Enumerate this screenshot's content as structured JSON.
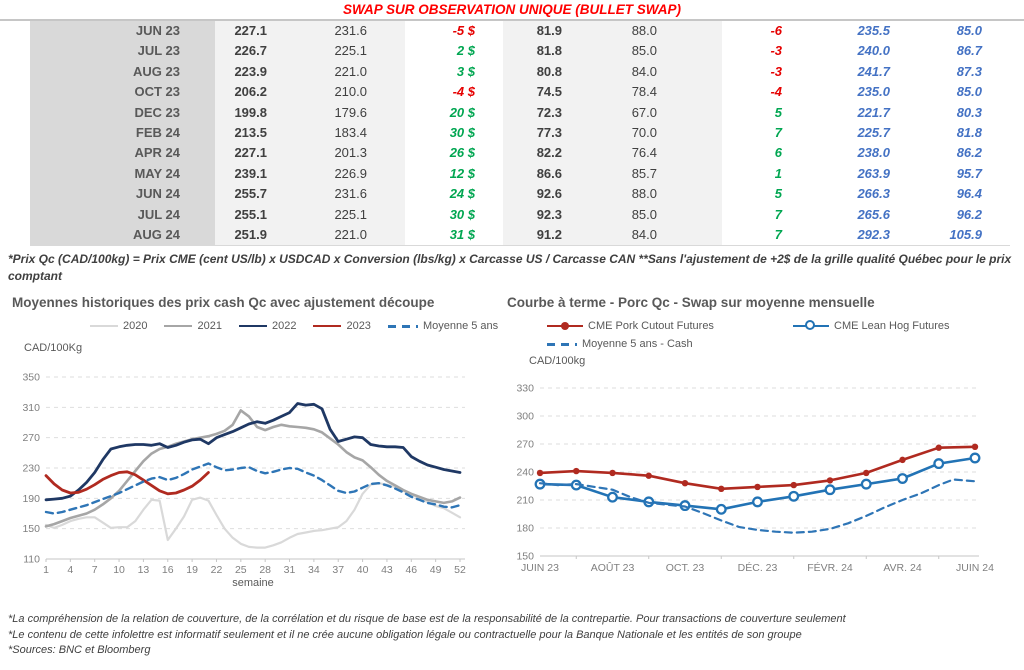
{
  "title": "SWAP SUR OBSERVATION UNIQUE (BULLET SWAP)",
  "formula_note": "*Prix Qc (CAD/100kg) = Prix CME (cent US/lb) x USDCAD x Conversion (lbs/kg) x Carcasse US / Carcasse CAN **Sans l'ajustement de +2$ de la grille qualité Québec pour le prix comptant",
  "footer_notes": [
    "*La compréhension de la relation de couverture, de la corrélation et du risque de base est de la responsabilité de la contrepartie. Pour transactions de couverture seulement",
    "*Le contenu de cette infolettre est informatif seulement et il ne crée aucune obligation légale ou contractuelle pour la Banque Nationale et les entités de son groupe",
    "*Sources: BNC et Bloomberg"
  ],
  "colors": {
    "title_red": "#ff0000",
    "negative": "#e60000",
    "positive": "#00a651",
    "futures_blue": "#4472c4",
    "navy_2022": "#1f3864",
    "red_series": "#b02a20",
    "steel_blue": "#2273b5",
    "dashed_blue": "#2e75b6",
    "gray_2021": "#a6a6a6",
    "light_gray_2020": "#d9d9d9"
  },
  "table": {
    "rows": [
      {
        "month": "JUN 23",
        "qc_swap": "227.1",
        "qc_cash": "231.6",
        "qc_diff": "-5 $",
        "us_swap": "81.9",
        "us_cash": "88.0",
        "us_diff": "-6",
        "curve_cad": "235.5",
        "curve_us": "85.0"
      },
      {
        "month": "JUL 23",
        "qc_swap": "226.7",
        "qc_cash": "225.1",
        "qc_diff": "2 $",
        "us_swap": "81.8",
        "us_cash": "85.0",
        "us_diff": "-3",
        "curve_cad": "240.0",
        "curve_us": "86.7"
      },
      {
        "month": "AUG 23",
        "qc_swap": "223.9",
        "qc_cash": "221.0",
        "qc_diff": "3 $",
        "us_swap": "80.8",
        "us_cash": "84.0",
        "us_diff": "-3",
        "curve_cad": "241.7",
        "curve_us": "87.3"
      },
      {
        "month": "OCT 23",
        "qc_swap": "206.2",
        "qc_cash": "210.0",
        "qc_diff": "-4 $",
        "us_swap": "74.5",
        "us_cash": "78.4",
        "us_diff": "-4",
        "curve_cad": "235.0",
        "curve_us": "85.0"
      },
      {
        "month": "DEC 23",
        "qc_swap": "199.8",
        "qc_cash": "179.6",
        "qc_diff": "20 $",
        "us_swap": "72.3",
        "us_cash": "67.0",
        "us_diff": "5",
        "curve_cad": "221.7",
        "curve_us": "80.3"
      },
      {
        "month": "FEB 24",
        "qc_swap": "213.5",
        "qc_cash": "183.4",
        "qc_diff": "30 $",
        "us_swap": "77.3",
        "us_cash": "70.0",
        "us_diff": "7",
        "curve_cad": "225.7",
        "curve_us": "81.8"
      },
      {
        "month": "APR 24",
        "qc_swap": "227.1",
        "qc_cash": "201.3",
        "qc_diff": "26 $",
        "us_swap": "82.2",
        "us_cash": "76.4",
        "us_diff": "6",
        "curve_cad": "238.0",
        "curve_us": "86.2"
      },
      {
        "month": "MAY 24",
        "qc_swap": "239.1",
        "qc_cash": "226.9",
        "qc_diff": "12 $",
        "us_swap": "86.6",
        "us_cash": "85.7",
        "us_diff": "1",
        "curve_cad": "263.9",
        "curve_us": "95.7"
      },
      {
        "month": "JUN 24",
        "qc_swap": "255.7",
        "qc_cash": "231.6",
        "qc_diff": "24 $",
        "us_swap": "92.6",
        "us_cash": "88.0",
        "us_diff": "5",
        "curve_cad": "266.3",
        "curve_us": "96.4"
      },
      {
        "month": "JUL 24",
        "qc_swap": "255.1",
        "qc_cash": "225.1",
        "qc_diff": "30 $",
        "us_swap": "92.3",
        "us_cash": "85.0",
        "us_diff": "7",
        "curve_cad": "265.6",
        "curve_us": "96.2"
      },
      {
        "month": "AUG 24",
        "qc_swap": "251.9",
        "qc_cash": "221.0",
        "qc_diff": "31 $",
        "us_swap": "91.2",
        "us_cash": "84.0",
        "us_diff": "7",
        "curve_cad": "292.3",
        "curve_us": "105.9"
      }
    ]
  },
  "chart_data": [
    {
      "type": "line",
      "title": "Moyennes historiques des prix cash Qc avec ajustement découpe",
      "unit_label": "CAD/100Kg",
      "xlabel": "semaine",
      "x_ticks": [
        1,
        4,
        7,
        10,
        13,
        16,
        19,
        22,
        25,
        28,
        31,
        34,
        37,
        40,
        43,
        46,
        49,
        52
      ],
      "ylim": [
        110,
        350
      ],
      "y_ticks": [
        110,
        150,
        190,
        230,
        270,
        310,
        350
      ],
      "grid": "dashed",
      "legend_position": "top",
      "series": [
        {
          "name": "2020",
          "color": "#d9d9d9",
          "style": "solid",
          "width": 2.2,
          "values": [
            155,
            151,
            155,
            160,
            163,
            165,
            165,
            158,
            151,
            152,
            152,
            160,
            175,
            188,
            187,
            135,
            150,
            166,
            188,
            191,
            187,
            168,
            150,
            138,
            130,
            126,
            125,
            125,
            128,
            132,
            138,
            143,
            145,
            147,
            148,
            150,
            152,
            160,
            175,
            196,
            208,
            210,
            208,
            205,
            200,
            195,
            190,
            185,
            180,
            177,
            171,
            165
          ]
        },
        {
          "name": "2021",
          "color": "#a6a6a6",
          "style": "solid",
          "width": 2.6,
          "values": [
            153,
            156,
            160,
            164,
            167,
            170,
            175,
            182,
            190,
            200,
            213,
            226,
            239,
            249,
            255,
            258,
            262,
            265,
            268,
            270,
            272,
            275,
            279,
            287,
            306,
            298,
            284,
            280,
            284,
            287,
            285,
            284,
            283,
            281,
            277,
            269,
            261,
            251,
            244,
            240,
            231,
            221,
            213,
            207,
            201,
            196,
            192,
            188,
            186,
            184,
            186,
            191
          ]
        },
        {
          "name": "2022",
          "color": "#1f3864",
          "style": "solid",
          "width": 2.8,
          "values": [
            188,
            189,
            190,
            193,
            201,
            211,
            224,
            241,
            255,
            258,
            260,
            261,
            261,
            260,
            262,
            257,
            260,
            264,
            267,
            268,
            262,
            270,
            274,
            278,
            283,
            288,
            291,
            289,
            293,
            298,
            303,
            315,
            313,
            314,
            308,
            281,
            265,
            268,
            271,
            270,
            261,
            259,
            258,
            258,
            257,
            245,
            239,
            234,
            231,
            228,
            226,
            224
          ]
        },
        {
          "name": "2023",
          "color": "#b02a20",
          "style": "solid",
          "width": 2.8,
          "values": [
            220,
            209,
            201,
            197,
            198,
            202,
            208,
            215,
            220,
            224,
            225,
            221,
            214,
            207,
            200,
            196,
            197,
            201,
            206,
            214,
            224
          ]
        },
        {
          "name": "Moyenne 5 ans",
          "color": "#2e75b6",
          "style": "dashed",
          "width": 2.4,
          "values": [
            172,
            170,
            172,
            175,
            178,
            181,
            185,
            189,
            193,
            197,
            202,
            207,
            212,
            216,
            218,
            214,
            217,
            222,
            228,
            232,
            236,
            231,
            227,
            228,
            230,
            231,
            226,
            223,
            225,
            228,
            230,
            229,
            224,
            220,
            214,
            207,
            200,
            197,
            199,
            204,
            209,
            210,
            207,
            203,
            198,
            192,
            188,
            184,
            182,
            179,
            178,
            181
          ]
        }
      ]
    },
    {
      "type": "line",
      "title": "Courbe à terme - Porc Qc - Swap sur moyenne mensuelle",
      "unit_label": "CAD/100kg",
      "x_labels": [
        "JUIN 23",
        "AOÛT 23",
        "OCT. 23",
        "DÉC. 23",
        "FÉVR. 24",
        "AVR. 24",
        "JUIN 24"
      ],
      "ylim": [
        150,
        330
      ],
      "y_ticks": [
        150,
        180,
        210,
        240,
        270,
        300,
        330
      ],
      "grid": "dashed",
      "legend_position": "top",
      "series": [
        {
          "name": "CME Pork Cutout Futures",
          "color": "#b02a20",
          "style": "solid",
          "marker": "filled",
          "width": 2.6,
          "values": [
            239,
            241,
            239,
            236,
            228,
            222,
            224,
            226,
            231,
            239,
            253,
            266,
            267
          ]
        },
        {
          "name": "CME Lean Hog Futures",
          "color": "#2273b5",
          "style": "solid",
          "marker": "open",
          "width": 2.6,
          "values": [
            227,
            226,
            213,
            208,
            204,
            200,
            208,
            214,
            221,
            227,
            233,
            249,
            255
          ]
        },
        {
          "name": "Moyenne 5 ans - Cash",
          "color": "#2e75b6",
          "style": "dashed",
          "width": 2.2,
          "points_x": [
            0,
            0.5,
            1,
            1.5,
            2,
            2.5,
            3,
            3.5,
            4,
            4.5,
            5,
            5.5,
            6,
            6.5,
            7,
            7.5,
            8,
            8.5,
            9,
            9.5,
            10,
            10.5,
            11,
            11.4,
            12
          ],
          "points_y": [
            228,
            226,
            227,
            224,
            221,
            213,
            207,
            205,
            203,
            196,
            188,
            181,
            178,
            176,
            175,
            176,
            179,
            185,
            193,
            202,
            210,
            217,
            226,
            232,
            230
          ]
        }
      ]
    }
  ]
}
